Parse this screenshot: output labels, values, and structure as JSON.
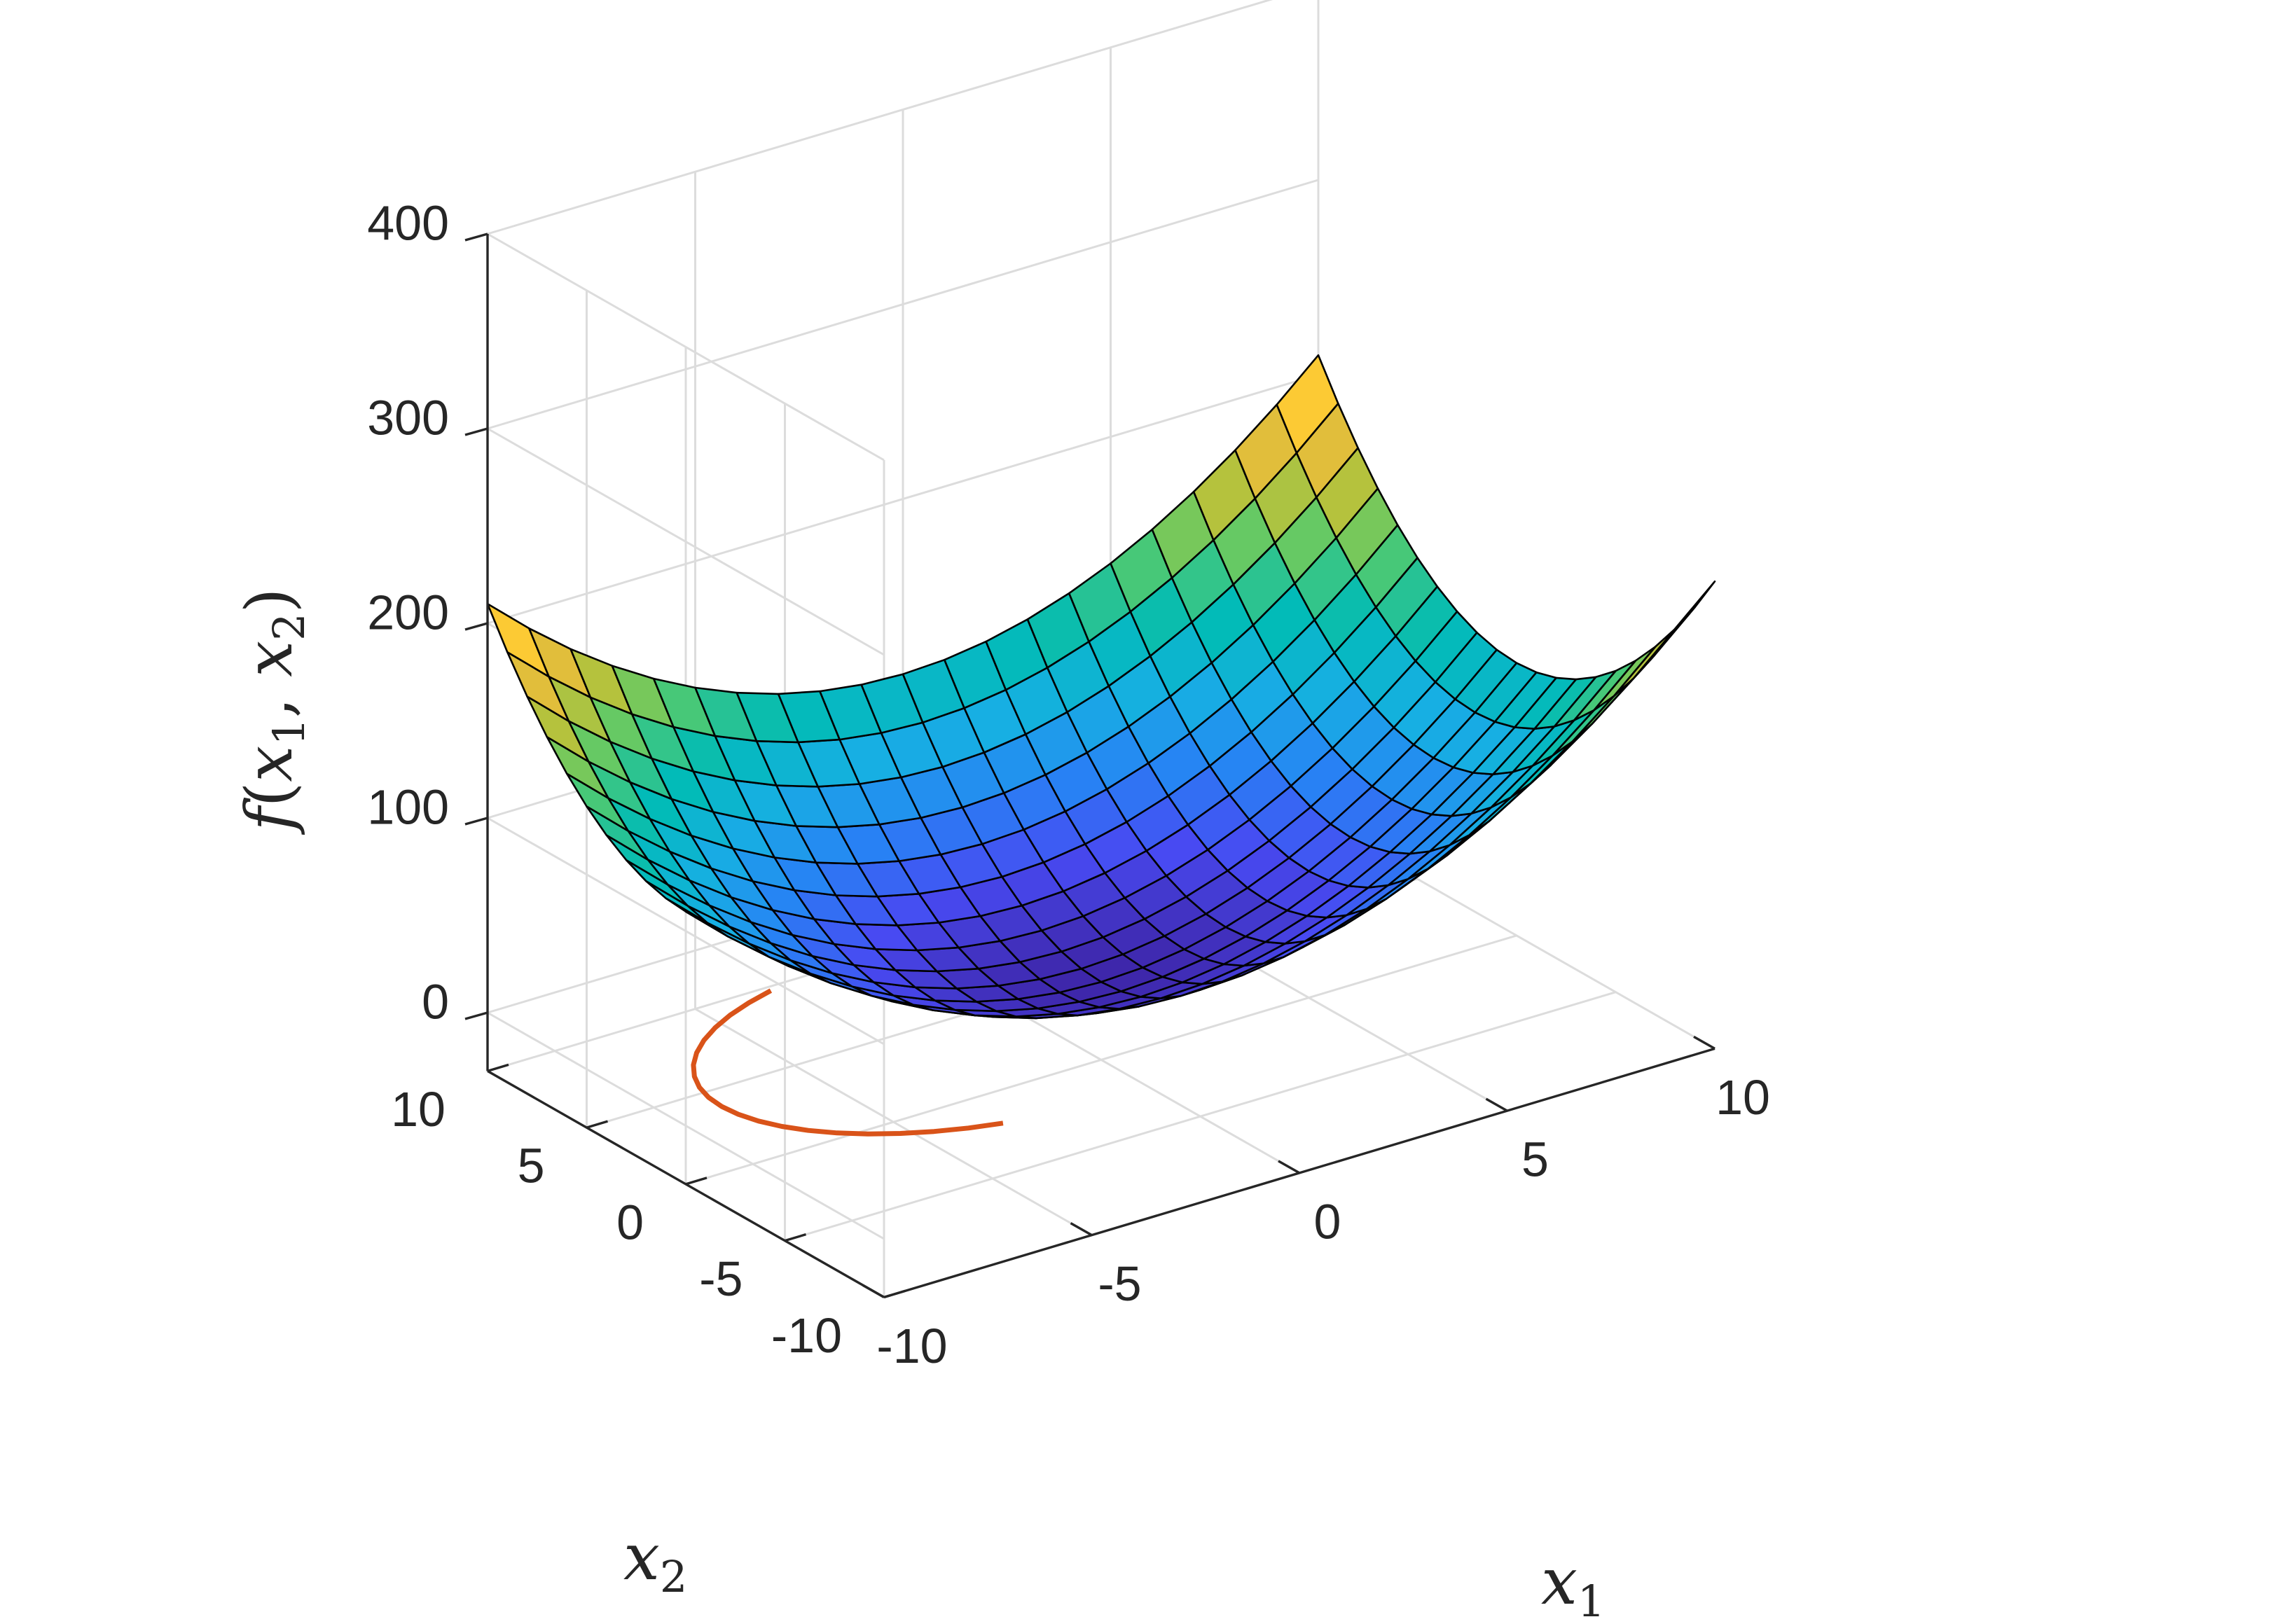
{
  "chart_data": {
    "type": "surface",
    "function": "f(x1,x2) = x1^2 + x2^2 + 10",
    "surface": {
      "x1_range": [
        -10,
        10
      ],
      "x2_range": [
        -10,
        10
      ],
      "grid_n": 21,
      "z_min": 10,
      "z_max": 210,
      "colormap": "parula"
    },
    "constraint_curve": {
      "color": "#D95319",
      "description": "arc in the base plane under the surface"
    },
    "axes": {
      "x1": {
        "label": "x",
        "subscript": "1",
        "range": [
          -10,
          10
        ],
        "ticks": [
          -10,
          -5,
          0,
          5,
          10
        ],
        "tick_labels": [
          "-10",
          "-5",
          "0",
          "5",
          "10"
        ]
      },
      "x2": {
        "label": "x",
        "subscript": "2",
        "range": [
          -10,
          10
        ],
        "ticks": [
          -10,
          -5,
          0,
          5,
          10
        ],
        "tick_labels": [
          "-10",
          "-5",
          "0",
          "5",
          "10"
        ]
      },
      "z": {
        "label_f": "f",
        "label_open": "(",
        "label_x": "x",
        "sub1": "1",
        "label_comma": ", ",
        "label_x2": "x",
        "sub2": "2",
        "label_close": ")",
        "range": [
          -30,
          400
        ],
        "ticks": [
          0,
          100,
          200,
          300,
          400
        ],
        "tick_labels": [
          "0",
          "100",
          "200",
          "300",
          "400"
        ]
      }
    },
    "grid": true
  }
}
